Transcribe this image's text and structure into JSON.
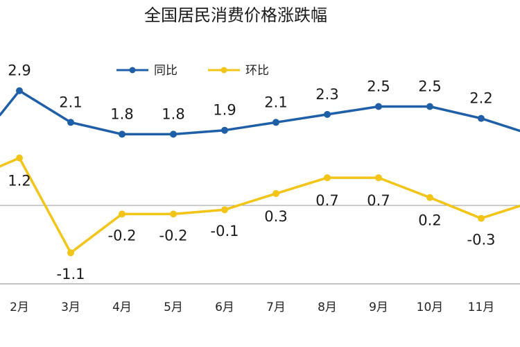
{
  "chart_data": {
    "type": "line",
    "title": "全国居民消费价格涨跌幅",
    "categories": [
      "2月",
      "3月",
      "4月",
      "5月",
      "6月",
      "7月",
      "8月",
      "9月",
      "10月",
      "11月"
    ],
    "series": [
      {
        "name": "同比",
        "color": "#1f5fa8",
        "values": [
          2.9,
          2.1,
          1.8,
          1.8,
          1.9,
          2.1,
          2.3,
          2.5,
          2.5,
          2.2
        ]
      },
      {
        "name": "环比",
        "color": "#f2c417",
        "values": [
          1.2,
          -1.1,
          -0.2,
          -0.2,
          -0.1,
          0.3,
          0.7,
          0.7,
          0.2,
          -0.3
        ]
      }
    ],
    "legend_position": "top-center",
    "grid": false
  }
}
